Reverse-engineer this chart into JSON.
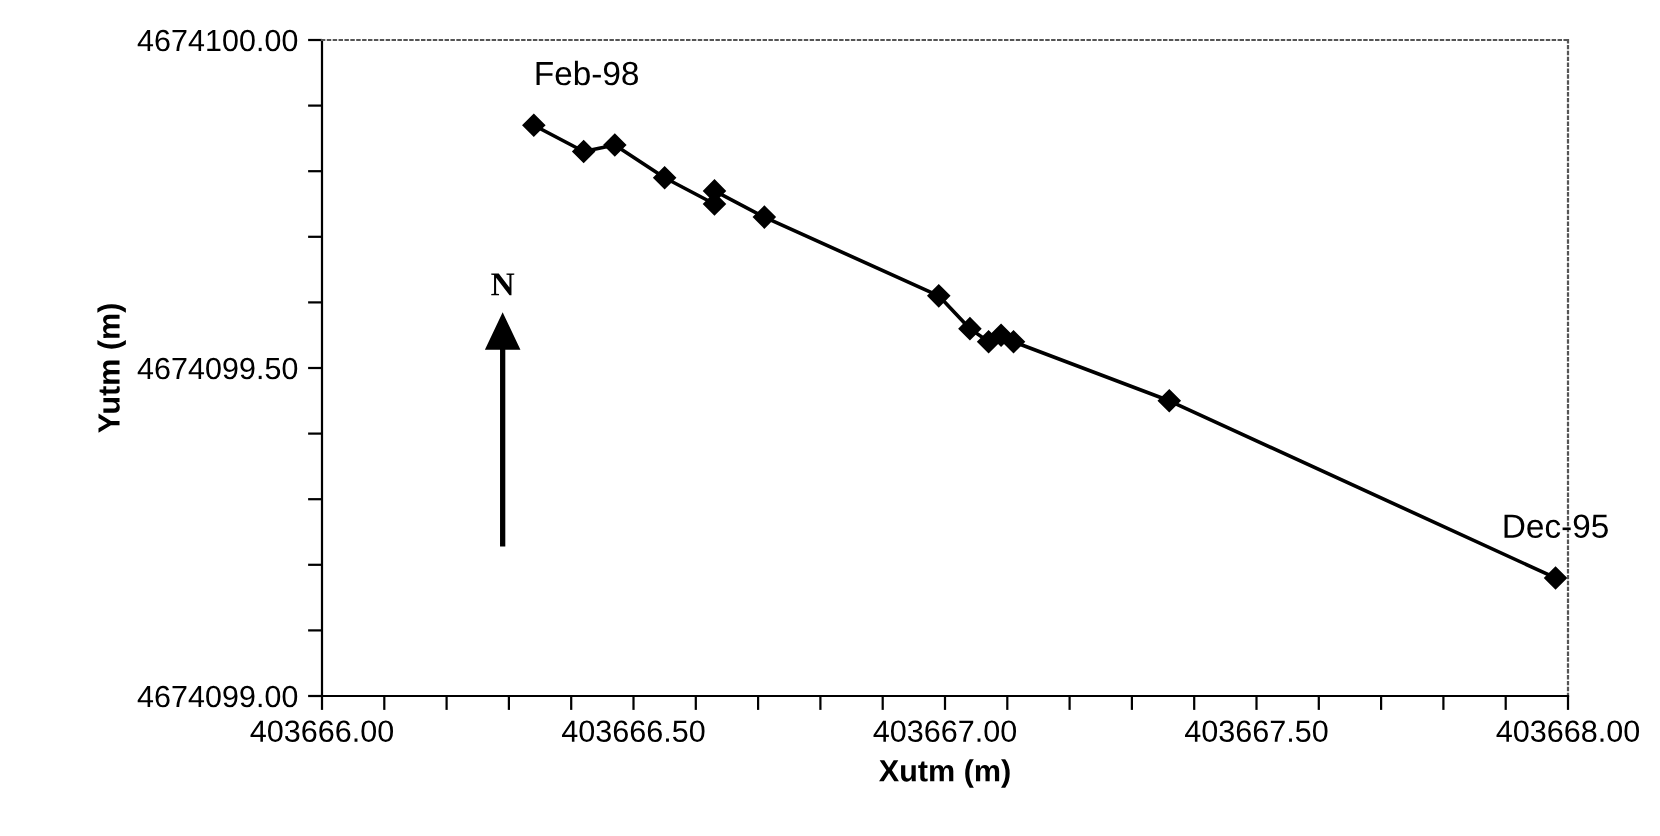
{
  "chart_data": {
    "type": "line",
    "xlabel": "Xutm (m)",
    "ylabel": "Yutm (m)",
    "x": [
      403666.34,
      403666.42,
      403666.47,
      403666.55,
      403666.63,
      403666.63,
      403666.71,
      403666.99,
      403667.04,
      403667.07,
      403667.09,
      403667.11,
      403667.36,
      403667.98
    ],
    "series": [
      {
        "color": "#000000",
        "values": [
          4674099.87,
          4674099.83,
          4674099.84,
          4674099.79,
          4674099.75,
          4674099.77,
          4674099.73,
          4674099.61,
          4674099.56,
          4674099.54,
          4674099.55,
          4674099.54,
          4674099.45,
          4674099.18
        ]
      }
    ],
    "marker": "diamond",
    "line_style": "solid",
    "grid": false,
    "legend": false,
    "xlim": [
      403666.0,
      403668.0
    ],
    "xticks": [
      {
        "value": 403666.0,
        "label": "403666.00"
      },
      {
        "value": 403666.1,
        "label": null
      },
      {
        "value": 403666.2,
        "label": null
      },
      {
        "value": 403666.3,
        "label": null
      },
      {
        "value": 403666.4,
        "label": null
      },
      {
        "value": 403666.5,
        "label": "403666.50"
      },
      {
        "value": 403666.6,
        "label": null
      },
      {
        "value": 403666.7,
        "label": null
      },
      {
        "value": 403666.8,
        "label": null
      },
      {
        "value": 403666.9,
        "label": null
      },
      {
        "value": 403667.0,
        "label": "403667.00"
      },
      {
        "value": 403667.1,
        "label": null
      },
      {
        "value": 403667.2,
        "label": null
      },
      {
        "value": 403667.3,
        "label": null
      },
      {
        "value": 403667.4,
        "label": null
      },
      {
        "value": 403667.5,
        "label": "403667.50"
      },
      {
        "value": 403667.6,
        "label": null
      },
      {
        "value": 403667.7,
        "label": null
      },
      {
        "value": 403667.8,
        "label": null
      },
      {
        "value": 403667.9,
        "label": null
      },
      {
        "value": 403668.0,
        "label": "403668.00"
      }
    ],
    "ylim": [
      4674099.0,
      4674100.0
    ],
    "yticks": [
      {
        "value": 4674099.0,
        "label": "4674099.00"
      },
      {
        "value": 4674099.1,
        "label": null
      },
      {
        "value": 4674099.2,
        "label": null
      },
      {
        "value": 4674099.3,
        "label": null
      },
      {
        "value": 4674099.4,
        "label": null
      },
      {
        "value": 4674099.5,
        "label": "4674099.50"
      },
      {
        "value": 4674099.6,
        "label": null
      },
      {
        "value": 4674099.7,
        "label": null
      },
      {
        "value": 4674099.8,
        "label": null
      },
      {
        "value": 4674099.9,
        "label": null
      },
      {
        "value": 4674100.0,
        "label": "4674100.00"
      }
    ],
    "annotations": [
      {
        "text": "Feb-98",
        "x": 403666.34,
        "y": 4674099.87
      },
      {
        "text": "Dec-95",
        "x": 403667.98,
        "y": 4674099.18
      },
      "N"
    ]
  }
}
